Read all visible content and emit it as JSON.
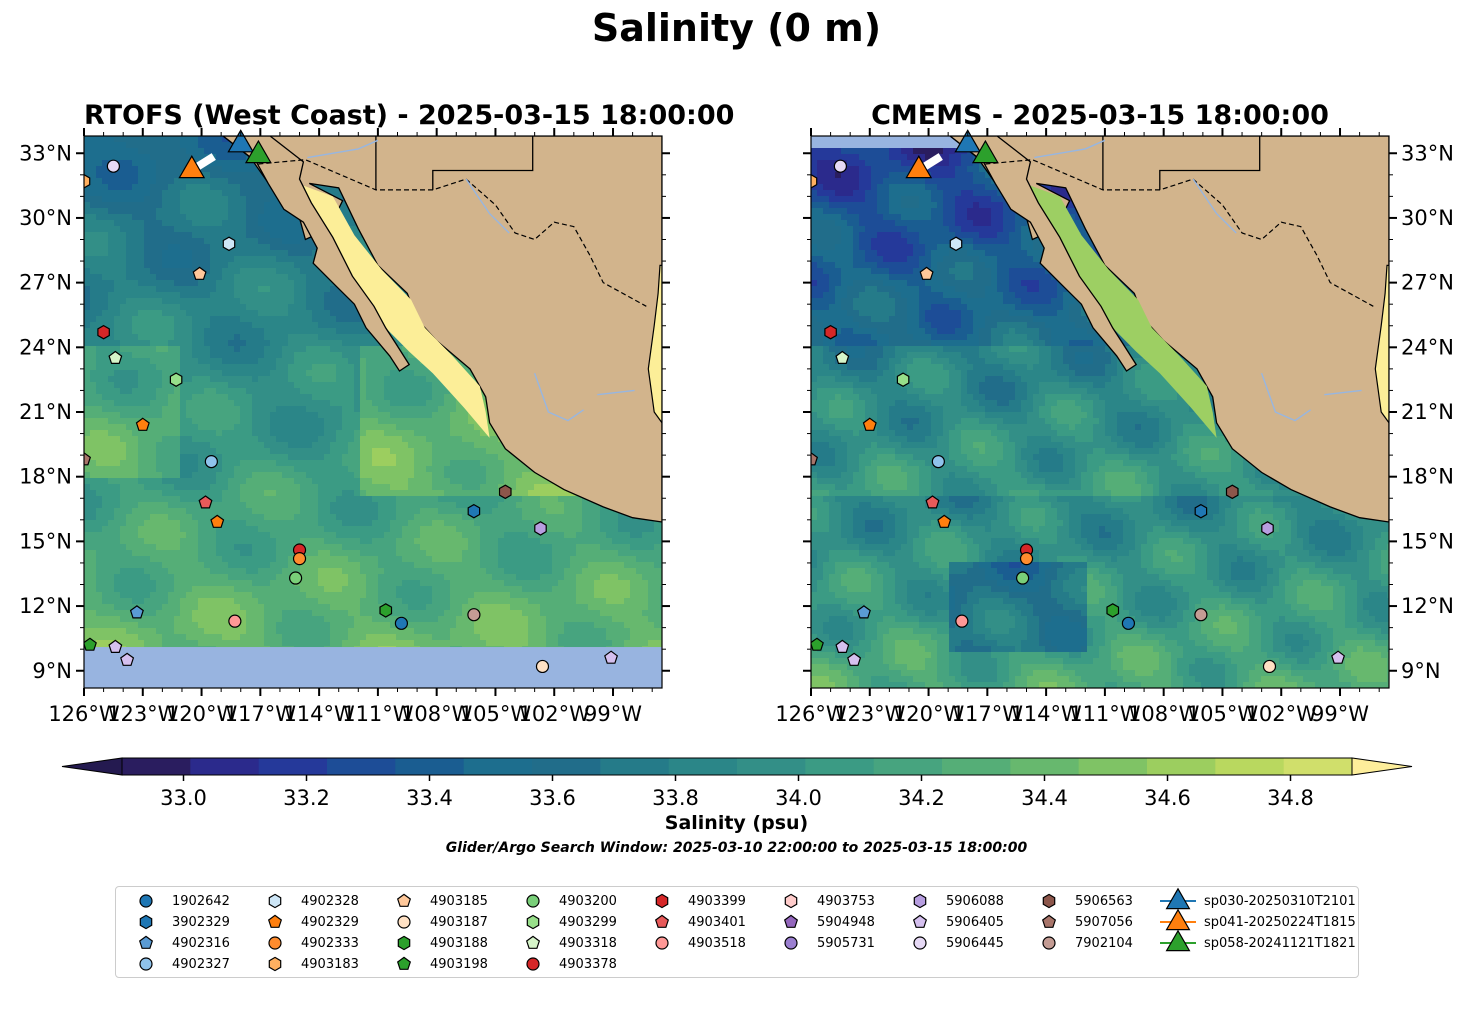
{
  "title": "Salinity (0 m)",
  "panels": [
    {
      "title": "RTOFS (West Coast) - 2025-03-15 18:00:00"
    },
    {
      "title": "CMEMS - 2025-03-15 18:00:00"
    }
  ],
  "map_extent": {
    "lon": [
      -126,
      -96.5
    ],
    "lat": [
      8.2,
      33.8
    ]
  },
  "x_ticks": [
    "126°W",
    "123°W",
    "120°W",
    "117°W",
    "114°W",
    "111°W",
    "108°W",
    "105°W",
    "102°W",
    "99°W"
  ],
  "y_ticks": [
    "9°N",
    "12°N",
    "15°N",
    "18°N",
    "21°N",
    "24°N",
    "27°N",
    "30°N",
    "33°N"
  ],
  "colorbar": {
    "label": "Salinity (psu)",
    "ticks": [
      "33.0",
      "33.2",
      "33.4",
      "33.6",
      "33.8",
      "34.0",
      "34.2",
      "34.4",
      "34.6",
      "34.8"
    ],
    "range": [
      32.9,
      34.9
    ],
    "colors": [
      "#2a1d5f",
      "#2b2a8c",
      "#25399a",
      "#1d4d97",
      "#1a5d91",
      "#1d6e8e",
      "#216d8a",
      "#257b89",
      "#2b8688",
      "#338f87",
      "#3b9b84",
      "#47a47f",
      "#55ae77",
      "#67b86e",
      "#7fc365",
      "#9cce5f",
      "#b9d85f",
      "#d0df6b"
    ],
    "extend_low": "#241a50",
    "extend_high": "#fdee9b"
  },
  "colors": {
    "land": "#d2b48c",
    "nodata": "#98b4e0",
    "gulf": "#fcee98"
  },
  "search_window": "Glider/Argo Search Window: 2025-03-10 22:00:00 to 2025-03-15 18:00:00",
  "legend": [
    {
      "label": "1902642",
      "marker": "circle",
      "color": "#1f77b4"
    },
    {
      "label": "3902329",
      "marker": "hexagon",
      "color": "#1f77b4"
    },
    {
      "label": "4902316",
      "marker": "pentagon",
      "color": "#5a9bd4"
    },
    {
      "label": "4902327",
      "marker": "circle",
      "color": "#8fc3ec"
    },
    {
      "label": "4902328",
      "marker": "hexagon",
      "color": "#cde6f7"
    },
    {
      "label": "4902329",
      "marker": "pentagon",
      "color": "#ff7f0e"
    },
    {
      "label": "4902333",
      "marker": "circle",
      "color": "#ff8c2e"
    },
    {
      "label": "4903183",
      "marker": "hexagon",
      "color": "#ffb060"
    },
    {
      "label": "4903185",
      "marker": "pentagon",
      "color": "#ffc89a"
    },
    {
      "label": "4903187",
      "marker": "circle",
      "color": "#ffe1c4"
    },
    {
      "label": "4903188",
      "marker": "hexagon",
      "color": "#2ca02c"
    },
    {
      "label": "4903198",
      "marker": "pentagon",
      "color": "#2ca02c"
    },
    {
      "label": "4903200",
      "marker": "circle",
      "color": "#79cf79"
    },
    {
      "label": "4903299",
      "marker": "hexagon",
      "color": "#98df8a"
    },
    {
      "label": "4903318",
      "marker": "pentagon",
      "color": "#d6f5c9"
    },
    {
      "label": "4903378",
      "marker": "circle",
      "color": "#d62728"
    },
    {
      "label": "4903399",
      "marker": "hexagon",
      "color": "#d62728"
    },
    {
      "label": "4903401",
      "marker": "pentagon",
      "color": "#e85a5a"
    },
    {
      "label": "4903518",
      "marker": "circle",
      "color": "#ff9896"
    },
    {
      "label": "4903753",
      "marker": "hexagon",
      "color": "#ffcccb"
    },
    {
      "label": "5904948",
      "marker": "pentagon",
      "color": "#9467bd"
    },
    {
      "label": "5905731",
      "marker": "circle",
      "color": "#9b7fd0"
    },
    {
      "label": "5906088",
      "marker": "hexagon",
      "color": "#b79ee0"
    },
    {
      "label": "5906405",
      "marker": "pentagon",
      "color": "#d5c0ef"
    },
    {
      "label": "5906445",
      "marker": "circle",
      "color": "#e6d9f5"
    },
    {
      "label": "5906563",
      "marker": "hexagon",
      "color": "#8c564b"
    },
    {
      "label": "5907056",
      "marker": "pentagon",
      "color": "#a8756a"
    },
    {
      "label": "7902104",
      "marker": "circle",
      "color": "#c49c94"
    },
    {
      "label": "sp030-20250310T2101",
      "marker": "triangle",
      "color": "#1f77b4"
    },
    {
      "label": "sp041-20250224T1815",
      "marker": "triangle",
      "color": "#ff7f0e"
    },
    {
      "label": "sp058-20241121T1821",
      "marker": "triangle",
      "color": "#2ca02c"
    }
  ],
  "floats": [
    {
      "id": "4903183",
      "lon": -126.0,
      "lat": 31.7
    },
    {
      "id": "5906445",
      "lon": -124.5,
      "lat": 32.4
    },
    {
      "id": "4902328",
      "lon": -118.6,
      "lat": 28.8
    },
    {
      "id": "4903185",
      "lon": -120.1,
      "lat": 27.4
    },
    {
      "id": "4903399",
      "lon": -125.0,
      "lat": 24.7
    },
    {
      "id": "4903318",
      "lon": -124.4,
      "lat": 23.5
    },
    {
      "id": "4903299",
      "lon": -121.3,
      "lat": 22.5
    },
    {
      "id": "4902329",
      "lon": -123.0,
      "lat": 20.4
    },
    {
      "id": "4902327",
      "lon": -119.5,
      "lat": 18.7
    },
    {
      "id": "5907056",
      "lon": -126.0,
      "lat": 18.8
    },
    {
      "id": "4903401",
      "lon": -119.8,
      "lat": 16.8
    },
    {
      "id": "4902329",
      "lon": -119.2,
      "lat": 15.9
    },
    {
      "id": "4903378",
      "lon": -115.0,
      "lat": 14.6
    },
    {
      "id": "4902333",
      "lon": -115.0,
      "lat": 14.2
    },
    {
      "id": "4903200",
      "lon": -115.2,
      "lat": 13.3
    },
    {
      "id": "3902329",
      "lon": -106.1,
      "lat": 16.4
    },
    {
      "id": "5906563",
      "lon": -104.5,
      "lat": 17.3
    },
    {
      "id": "5906088",
      "lon": -102.7,
      "lat": 15.6
    },
    {
      "id": "4902316",
      "lon": -123.3,
      "lat": 11.7
    },
    {
      "id": "4903518",
      "lon": -118.3,
      "lat": 11.3
    },
    {
      "id": "4903188",
      "lon": -110.6,
      "lat": 11.8
    },
    {
      "id": "1902642",
      "lon": -109.8,
      "lat": 11.2
    },
    {
      "id": "7902104",
      "lon": -106.1,
      "lat": 11.6
    },
    {
      "id": "4903198",
      "lon": -125.7,
      "lat": 10.2
    },
    {
      "id": "5906405",
      "lon": -124.4,
      "lat": 10.1
    },
    {
      "id": "5906405",
      "lon": -123.8,
      "lat": 9.5
    },
    {
      "id": "4903187",
      "lon": -102.6,
      "lat": 9.2
    },
    {
      "id": "5906405",
      "lon": -99.1,
      "lat": 9.6
    }
  ],
  "gliders": [
    {
      "id": "sp030-20250310T2101",
      "lon": -118.0,
      "lat": 33.4
    },
    {
      "id": "sp041-20250224T1815",
      "lon": -120.5,
      "lat": 32.2
    },
    {
      "id": "sp058-20241121T1821",
      "lon": -117.1,
      "lat": 32.9
    }
  ]
}
